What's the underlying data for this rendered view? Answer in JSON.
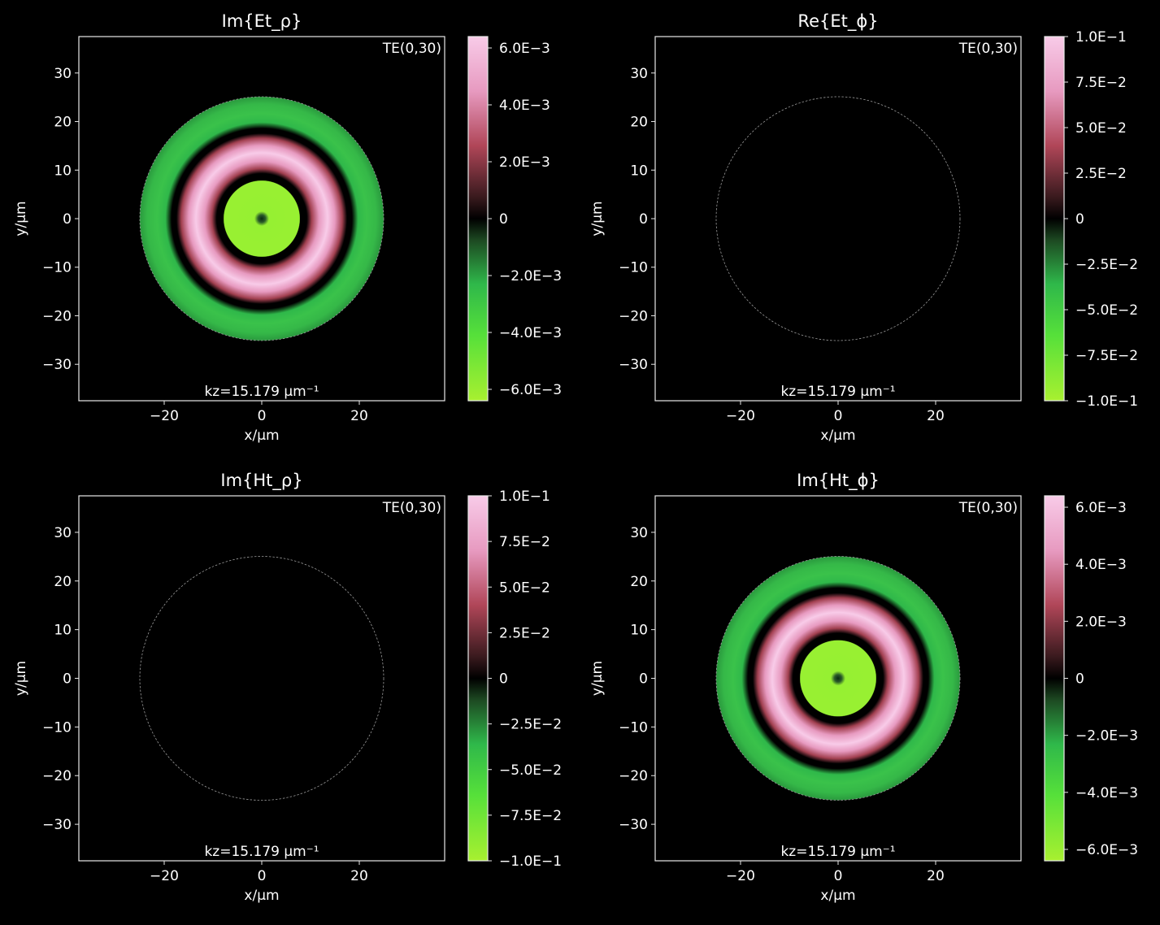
{
  "chart_data": [
    {
      "type": "heatmap",
      "title": "Im{Et_ρ}",
      "mode_label": "TE(0,30)",
      "kz_label": "kz=15.179 μm⁻¹",
      "xlabel": "x/μm",
      "ylabel": "y/μm",
      "xlim": [
        -37.5,
        37.5
      ],
      "ylim": [
        -37.5,
        37.5
      ],
      "xticks": [
        -20,
        0,
        20
      ],
      "yticks": [
        -30,
        -20,
        -10,
        0,
        10,
        20,
        30
      ],
      "xtick_labels": [
        "−20",
        "0",
        "20"
      ],
      "ytick_labels": [
        "−30",
        "−20",
        "−10",
        "0",
        "10",
        "20",
        "30"
      ],
      "boundary_radius": 25,
      "field": "ring",
      "colorbar": {
        "vmin": -0.0064,
        "vmax": 0.0064,
        "ticks": [
          0.006,
          0.004,
          0.002,
          0,
          -0.002,
          -0.004,
          -0.006
        ],
        "tick_labels": [
          "6.0E−3",
          "4.0E−3",
          "2.0E−3",
          "0",
          "−2.0E−3",
          "−4.0E−3",
          "−6.0E−3"
        ]
      }
    },
    {
      "type": "heatmap",
      "title": "Re{Et_ϕ}",
      "mode_label": "TE(0,30)",
      "kz_label": "kz=15.179 μm⁻¹",
      "xlabel": "x/μm",
      "ylabel": "y/μm",
      "xlim": [
        -37.5,
        37.5
      ],
      "ylim": [
        -37.5,
        37.5
      ],
      "xticks": [
        -20,
        0,
        20
      ],
      "yticks": [
        -30,
        -20,
        -10,
        0,
        10,
        20,
        30
      ],
      "xtick_labels": [
        "−20",
        "0",
        "20"
      ],
      "ytick_labels": [
        "−30",
        "−20",
        "−10",
        "0",
        "10",
        "20",
        "30"
      ],
      "boundary_radius": 25,
      "field": "zero",
      "colorbar": {
        "vmin": -0.1,
        "vmax": 0.1,
        "ticks": [
          0.1,
          0.075,
          0.05,
          0.025,
          0,
          -0.025,
          -0.05,
          -0.075,
          -0.1
        ],
        "tick_labels": [
          "1.0E−1",
          "7.5E−2",
          "5.0E−2",
          "2.5E−2",
          "0",
          "−2.5E−2",
          "−5.0E−2",
          "−7.5E−2",
          "−1.0E−1"
        ]
      }
    },
    {
      "type": "heatmap",
      "title": "Im{Ht_ρ}",
      "mode_label": "TE(0,30)",
      "kz_label": "kz=15.179 μm⁻¹",
      "xlabel": "x/μm",
      "ylabel": "y/μm",
      "xlim": [
        -37.5,
        37.5
      ],
      "ylim": [
        -37.5,
        37.5
      ],
      "xticks": [
        -20,
        0,
        20
      ],
      "yticks": [
        -30,
        -20,
        -10,
        0,
        10,
        20,
        30
      ],
      "xtick_labels": [
        "−20",
        "0",
        "20"
      ],
      "ytick_labels": [
        "−30",
        "−20",
        "−10",
        "0",
        "10",
        "20",
        "30"
      ],
      "boundary_radius": 25,
      "field": "zero",
      "colorbar": {
        "vmin": -0.1,
        "vmax": 0.1,
        "ticks": [
          0.1,
          0.075,
          0.05,
          0.025,
          0,
          -0.025,
          -0.05,
          -0.075,
          -0.1
        ],
        "tick_labels": [
          "1.0E−1",
          "7.5E−2",
          "5.0E−2",
          "2.5E−2",
          "0",
          "−2.5E−2",
          "−5.0E−2",
          "−7.5E−2",
          "−1.0E−1"
        ]
      }
    },
    {
      "type": "heatmap",
      "title": "Im{Ht_ϕ}",
      "mode_label": "TE(0,30)",
      "kz_label": "kz=15.179 μm⁻¹",
      "xlabel": "x/μm",
      "ylabel": "y/μm",
      "xlim": [
        -37.5,
        37.5
      ],
      "ylim": [
        -37.5,
        37.5
      ],
      "xticks": [
        -20,
        0,
        20
      ],
      "yticks": [
        -30,
        -20,
        -10,
        0,
        10,
        20,
        30
      ],
      "xtick_labels": [
        "−20",
        "0",
        "20"
      ],
      "ytick_labels": [
        "−30",
        "−20",
        "−10",
        "0",
        "10",
        "20",
        "30"
      ],
      "boundary_radius": 25,
      "field": "ring",
      "colorbar": {
        "vmin": -0.0064,
        "vmax": 0.0064,
        "ticks": [
          0.006,
          0.004,
          0.002,
          0,
          -0.002,
          -0.004,
          -0.006
        ],
        "tick_labels": [
          "6.0E−3",
          "4.0E−3",
          "2.0E−3",
          "0",
          "−2.0E−3",
          "−4.0E−3",
          "−6.0E−3"
        ]
      }
    }
  ],
  "colors": {
    "background": "#000000",
    "axes": "#e8e8e8",
    "boundary": "#9a9a9a",
    "cmap_positive_mid": "#b7485c",
    "cmap_positive_high": "#f6c6e6",
    "cmap_negative_mid": "#2fbf4a",
    "cmap_negative_high": "#a8f030"
  }
}
